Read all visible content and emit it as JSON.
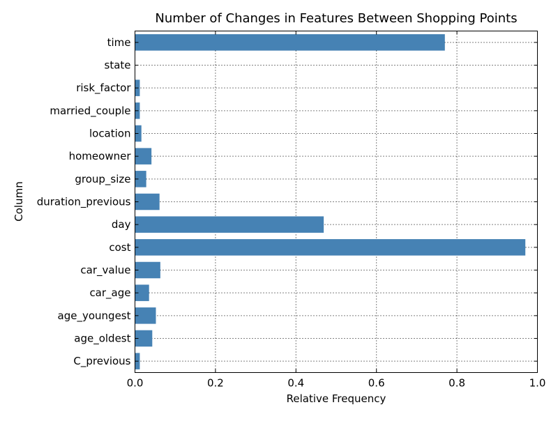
{
  "chart_data": {
    "type": "bar",
    "orientation": "horizontal",
    "title": "Number of Changes in Features Between Shopping Points",
    "xlabel": "Relative Frequency",
    "ylabel": "Column",
    "categories": [
      "time",
      "state",
      "risk_factor",
      "married_couple",
      "location",
      "homeowner",
      "group_size",
      "duration_previous",
      "day",
      "cost",
      "car_value",
      "car_age",
      "age_youngest",
      "age_oldest",
      "C_previous"
    ],
    "values": [
      0.77,
      0.0,
      0.012,
      0.012,
      0.016,
      0.041,
      0.028,
      0.061,
      0.469,
      0.97,
      0.063,
      0.035,
      0.052,
      0.043,
      0.012
    ],
    "xlim": [
      0,
      1.0
    ],
    "xticks": [
      "0.0",
      "0.2",
      "0.4",
      "0.6",
      "0.8",
      "1.0"
    ],
    "xtick_values": [
      0,
      0.2,
      0.4,
      0.6,
      0.8,
      1.0
    ],
    "grid": true,
    "bar_color": "#4682b4"
  }
}
